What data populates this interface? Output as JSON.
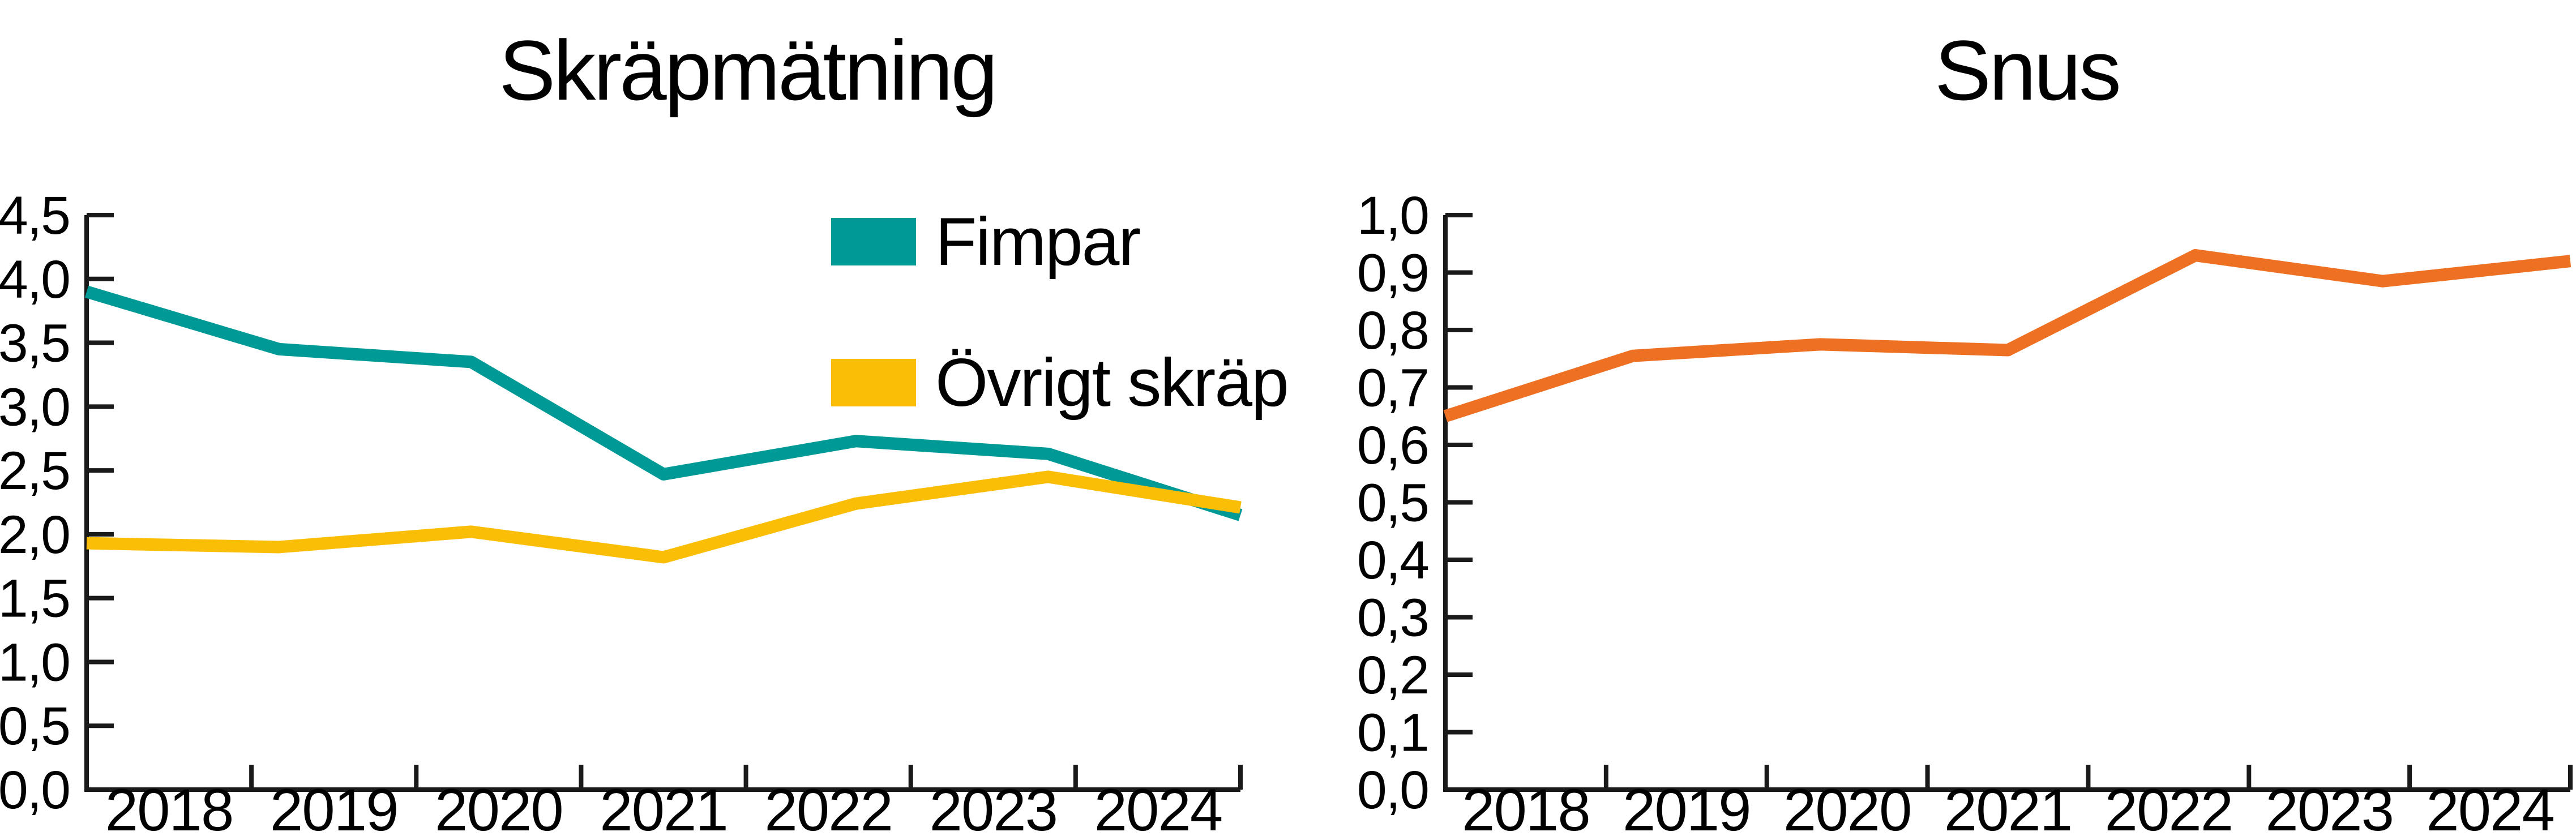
{
  "chart_data": [
    {
      "type": "line",
      "title": "Skräpmätning",
      "categories": [
        "2018",
        "2019",
        "2020",
        "2021",
        "2022",
        "2023",
        "2024"
      ],
      "series": [
        {
          "name": "Fimpar",
          "color": "#009A96",
          "values": [
            3.9,
            3.45,
            3.35,
            2.47,
            2.73,
            2.63,
            2.15
          ]
        },
        {
          "name": "Övrigt skräp",
          "color": "#FBBE06",
          "values": [
            1.93,
            1.9,
            2.02,
            1.82,
            2.24,
            2.45,
            2.21
          ]
        }
      ],
      "xlabel": "",
      "ylabel": "",
      "ylim": [
        0,
        4.5
      ],
      "ytick_step": 0.5,
      "ytick_labels": [
        "0,0",
        "0,5",
        "1,0",
        "1,5",
        "2,0",
        "2,5",
        "3,0",
        "3,5",
        "4,0",
        "4,5"
      ],
      "grid": false,
      "legend_position": "top-right-inside",
      "axis_color": "#1A1A1A",
      "decimal_style": "comma"
    },
    {
      "type": "line",
      "title": "Snus",
      "categories": [
        "2018",
        "2019",
        "2020",
        "2021",
        "2022",
        "2023",
        "2024"
      ],
      "series": [
        {
          "name": "Snus",
          "color": "#EE7023",
          "values": [
            0.65,
            0.755,
            0.775,
            0.765,
            0.93,
            0.885,
            0.92
          ]
        }
      ],
      "xlabel": "",
      "ylabel": "",
      "ylim": [
        0,
        1.0
      ],
      "ytick_step": 0.1,
      "ytick_labels": [
        "0,0",
        "0,1",
        "0,2",
        "0,3",
        "0,4",
        "0,5",
        "0,6",
        "0,7",
        "0,8",
        "0,9",
        "1,0"
      ],
      "grid": false,
      "legend_position": "none",
      "axis_color": "#1A1A1A",
      "decimal_style": "comma"
    }
  ]
}
